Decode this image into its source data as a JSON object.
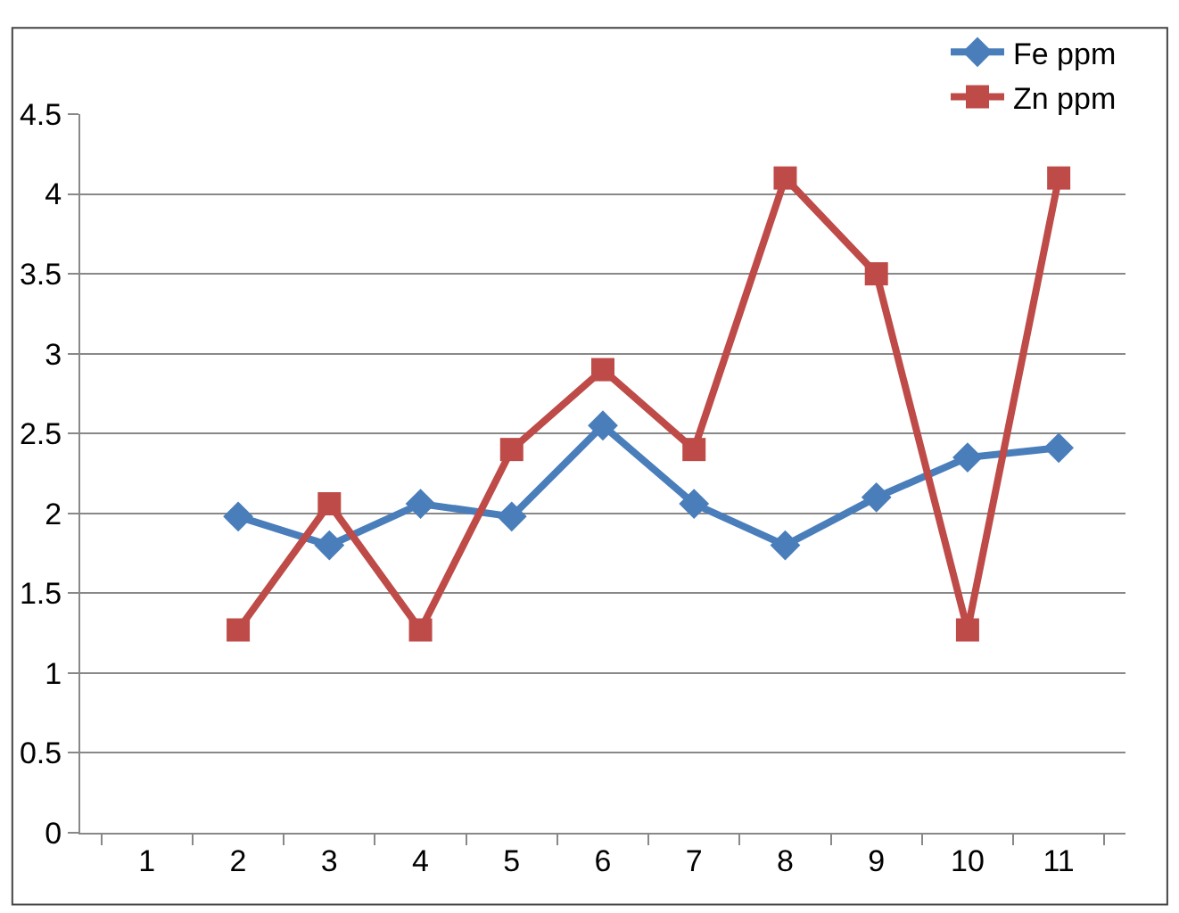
{
  "chart_data": {
    "type": "line",
    "categories": [
      "1",
      "2",
      "3",
      "4",
      "5",
      "6",
      "7",
      "8",
      "9",
      "10",
      "11"
    ],
    "series": [
      {
        "name": "Fe ppm",
        "color": "#4a7ebb",
        "marker": "diamond",
        "values": [
          null,
          1.98,
          1.8,
          2.06,
          1.98,
          2.55,
          2.06,
          1.8,
          2.1,
          2.35,
          2.41
        ]
      },
      {
        "name": "Zn ppm",
        "color": "#be4b48",
        "marker": "square",
        "values": [
          null,
          1.27,
          2.06,
          1.27,
          2.4,
          2.9,
          2.4,
          4.1,
          3.5,
          1.27,
          4.1
        ]
      }
    ],
    "ylim": [
      0,
      4.5
    ],
    "yticks": [
      0,
      0.5,
      1,
      1.5,
      2,
      2.5,
      3,
      3.5,
      4,
      4.5
    ],
    "grid": "y",
    "legend": "top right",
    "line_style": "solid"
  }
}
